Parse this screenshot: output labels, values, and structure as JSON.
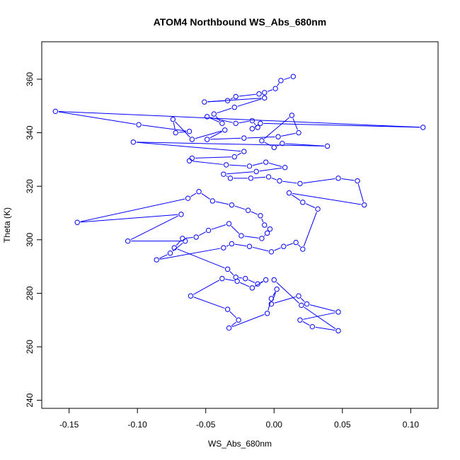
{
  "chart_data": {
    "type": "scatter",
    "title": "ATOM4 Northbound WS_Abs_680nm",
    "xlabel": "WS_Abs_680nm",
    "ylabel": "Theta (K)",
    "xlim": [
      -0.17,
      0.12
    ],
    "ylim": [
      237,
      374
    ],
    "xticks": [
      -0.15,
      -0.1,
      -0.05,
      0.0,
      0.05,
      0.1
    ],
    "xtick_labels": [
      "-0.15",
      "-0.10",
      "-0.05",
      "0.00",
      "0.05",
      "0.10"
    ],
    "yticks": [
      240,
      260,
      280,
      300,
      320,
      340,
      360
    ],
    "ytick_labels": [
      "240",
      "260",
      "280",
      "300",
      "320",
      "340",
      "360"
    ],
    "grid": false,
    "line_color": "#0000ff",
    "marker": "open-circle",
    "connected": true,
    "points": [
      [
        0.014,
        361.0
      ],
      [
        0.005,
        359.5
      ],
      [
        0.001,
        356.5
      ],
      [
        -0.007,
        355.0
      ],
      [
        -0.011,
        354.5
      ],
      [
        -0.028,
        353.5
      ],
      [
        -0.034,
        352.0
      ],
      [
        -0.051,
        351.5
      ],
      [
        -0.007,
        353.0
      ],
      [
        -0.029,
        349.5
      ],
      [
        -0.044,
        347.0
      ],
      [
        -0.038,
        343.5
      ],
      [
        -0.049,
        346.0
      ],
      [
        -0.028,
        343.5
      ],
      [
        -0.016,
        344.5
      ],
      [
        -0.012,
        342.0
      ],
      [
        -0.016,
        341.5
      ],
      [
        -0.01,
        343.5
      ],
      [
        0.109,
        342.0
      ],
      [
        -0.16,
        348.0
      ],
      [
        -0.099,
        343.0
      ],
      [
        -0.062,
        340.5
      ],
      [
        -0.072,
        340.0
      ],
      [
        -0.074,
        345.0
      ],
      [
        -0.06,
        337.5
      ],
      [
        -0.036,
        341.0
      ],
      [
        -0.049,
        337.5
      ],
      [
        -0.022,
        338.0
      ],
      [
        0.003,
        338.5
      ],
      [
        0.018,
        340.0
      ],
      [
        0.013,
        346.5
      ],
      [
        -0.009,
        337.0
      ],
      [
        0.0,
        334.5
      ],
      [
        0.006,
        336.0
      ],
      [
        0.039,
        335.0
      ],
      [
        -0.103,
        336.5
      ],
      [
        -0.022,
        333.0
      ],
      [
        -0.029,
        331.0
      ],
      [
        -0.06,
        330.5
      ],
      [
        -0.062,
        329.5
      ],
      [
        -0.035,
        328.0
      ],
      [
        -0.018,
        327.5
      ],
      [
        -0.006,
        329.0
      ],
      [
        0.008,
        327.0
      ],
      [
        -0.013,
        325.5
      ],
      [
        -0.037,
        324.5
      ],
      [
        -0.032,
        323.0
      ],
      [
        -0.017,
        323.0
      ],
      [
        -0.004,
        323.5
      ],
      [
        0.004,
        322.0
      ],
      [
        0.019,
        321.0
      ],
      [
        0.047,
        323.0
      ],
      [
        0.061,
        322.0
      ],
      [
        0.066,
        313.0
      ],
      [
        0.011,
        317.5
      ],
      [
        0.021,
        314.0
      ],
      [
        0.032,
        311.5
      ],
      [
        0.021,
        296.5
      ],
      [
        0.016,
        299.0
      ],
      [
        0.007,
        297.5
      ],
      [
        -0.002,
        295.5
      ],
      [
        -0.018,
        297.5
      ],
      [
        -0.031,
        298.5
      ],
      [
        -0.037,
        297.0
      ],
      [
        -0.086,
        292.5
      ],
      [
        -0.076,
        295.0
      ],
      [
        -0.065,
        299.5
      ],
      [
        -0.107,
        299.5
      ],
      [
        -0.068,
        309.5
      ],
      [
        -0.144,
        306.5
      ],
      [
        -0.063,
        315.5
      ],
      [
        -0.055,
        318.0
      ],
      [
        -0.045,
        314.5
      ],
      [
        -0.031,
        313.0
      ],
      [
        -0.019,
        311.0
      ],
      [
        -0.01,
        309.0
      ],
      [
        -0.007,
        305.5
      ],
      [
        -0.003,
        304.0
      ],
      [
        -0.005,
        302.5
      ],
      [
        -0.009,
        300.5
      ],
      [
        -0.024,
        301.5
      ],
      [
        -0.033,
        306.0
      ],
      [
        -0.048,
        303.5
      ],
      [
        -0.057,
        301.0
      ],
      [
        -0.067,
        300.5
      ],
      [
        -0.073,
        297.0
      ],
      [
        -0.034,
        289.0
      ],
      [
        -0.028,
        286.0
      ],
      [
        -0.021,
        285.5
      ],
      [
        -0.012,
        283.5
      ],
      [
        -0.006,
        285.0
      ],
      [
        -0.016,
        282.0
      ],
      [
        -0.027,
        284.5
      ],
      [
        -0.038,
        285.5
      ],
      [
        -0.061,
        279.0
      ],
      [
        -0.034,
        274.0
      ],
      [
        -0.026,
        270.0
      ],
      [
        -0.033,
        267.0
      ],
      [
        -0.005,
        272.5
      ],
      [
        -0.002,
        278.0
      ],
      [
        0.002,
        281.5
      ],
      [
        -0.002,
        276.0
      ],
      [
        0.018,
        279.0
      ],
      [
        0.024,
        276.0
      ],
      [
        0.047,
        273.0
      ],
      [
        0.019,
        270.0
      ],
      [
        0.028,
        267.5
      ],
      [
        0.047,
        266.0
      ],
      [
        0.02,
        275.5
      ],
      [
        0.0,
        285.0
      ]
    ]
  }
}
